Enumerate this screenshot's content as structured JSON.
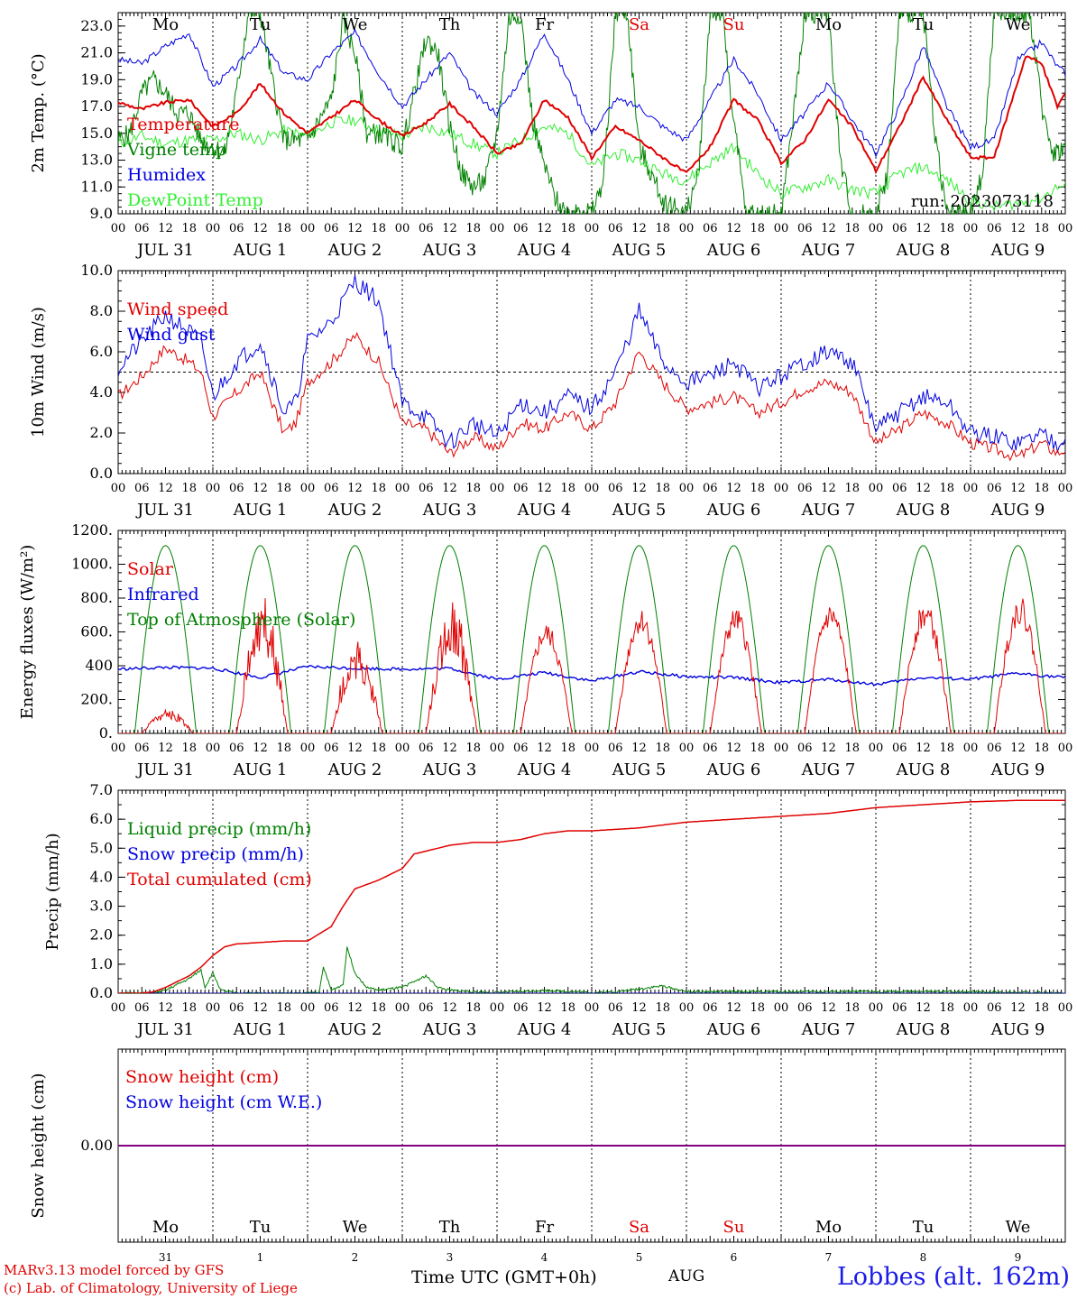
{
  "run_label": "run: 2023073118",
  "colors": {
    "red": "#e00000",
    "green": "#008000",
    "blue": "#0000e0",
    "lightgreen": "#33ee33",
    "purple": "#800080",
    "black": "#000000"
  },
  "x_hour_ticks": [
    "00",
    "06",
    "12",
    "18"
  ],
  "x_end_tick": "00",
  "date_labels": [
    "JUL 31",
    "AUG  1",
    "AUG  2",
    "AUG  3",
    "AUG  4",
    "AUG  5",
    "AUG  6",
    "AUG  7",
    "AUG  8",
    "AUG  9"
  ],
  "weekdays": [
    {
      "label": "Mo",
      "color": "black"
    },
    {
      "label": "Tu",
      "color": "black"
    },
    {
      "label": "We",
      "color": "black"
    },
    {
      "label": "Th",
      "color": "black"
    },
    {
      "label": "Fr",
      "color": "black"
    },
    {
      "label": "Sa",
      "color": "red"
    },
    {
      "label": "Su",
      "color": "red"
    },
    {
      "label": "Mo",
      "color": "black"
    },
    {
      "label": "Tu",
      "color": "black"
    },
    {
      "label": "We",
      "color": "black"
    }
  ],
  "bottom_day_numbers": [
    "31",
    "1",
    "2",
    "3",
    "4",
    "5",
    "6",
    "7",
    "8",
    "9"
  ],
  "footer": {
    "credit_line1": "MARv3.13 model forced by GFS",
    "credit_line2": "(c) Lab. of Climatology, University of Liege",
    "x_title": "Time UTC (GMT+0h)",
    "month": "AUG",
    "station": "Lobbes (alt. 162m)"
  },
  "chart_data": [
    {
      "type": "line",
      "ylabel": "2m Temp. (°C)",
      "ylim": [
        9.0,
        24.0
      ],
      "yticks": [
        "9.0",
        "11.0",
        "13.0",
        "15.0",
        "17.0",
        "19.0",
        "21.0",
        "23.0"
      ],
      "x_unit": "hours since 2023-07-31 00 UTC",
      "series": [
        {
          "name": "Temperature",
          "color": "red",
          "x": [
            0,
            6,
            12,
            18,
            24,
            30,
            36,
            42,
            48,
            54,
            60,
            66,
            72,
            78,
            84,
            90,
            96,
            102,
            108,
            114,
            120,
            126,
            132,
            138,
            144,
            150,
            156,
            162,
            168,
            174,
            180,
            186,
            192,
            198,
            204,
            210,
            216,
            222,
            230,
            234,
            238,
            240
          ],
          "y": [
            17.3,
            16.8,
            17.3,
            17.5,
            15.5,
            16.5,
            18.7,
            16.5,
            15.0,
            16.2,
            17.5,
            16.0,
            14.8,
            15.8,
            17.2,
            15.5,
            13.5,
            14.2,
            17.5,
            16.2,
            13.2,
            15.5,
            14.5,
            13.2,
            12.0,
            14.0,
            17.5,
            16.0,
            12.8,
            14.5,
            17.5,
            15.5,
            12.2,
            15.5,
            19.2,
            16.0,
            13.2,
            13.2,
            20.8,
            20.2,
            17.0,
            18.0
          ]
        },
        {
          "name": "Vigne temp",
          "color": "green",
          "x": [
            0,
            3,
            6,
            9,
            12,
            15,
            18,
            21,
            24,
            27,
            30,
            33,
            36,
            39,
            42,
            45,
            48,
            51,
            54,
            57,
            60,
            63,
            66,
            69,
            72,
            75,
            78,
            81,
            84,
            87,
            90,
            93,
            96,
            99,
            102,
            105,
            108,
            111,
            114,
            117,
            120,
            123,
            126,
            129,
            132,
            135,
            138,
            141,
            144,
            147,
            150,
            153,
            156,
            159,
            162,
            165,
            168,
            171,
            174,
            177,
            180,
            183,
            186,
            189,
            192,
            195,
            198,
            201,
            204,
            207,
            210,
            213,
            216,
            219,
            222,
            225,
            228,
            231,
            234,
            237,
            240
          ],
          "y": [
            14.5,
            15.0,
            18.0,
            19.0,
            18.0,
            16.5,
            16.5,
            14.5,
            14.0,
            13.5,
            18.0,
            24.0,
            24.0,
            19.0,
            14.5,
            14.5,
            14.5,
            16.0,
            17.5,
            23.5,
            21.0,
            15.0,
            15.0,
            14.5,
            14.0,
            18.0,
            22.0,
            21.0,
            15.5,
            12.0,
            11.0,
            11.5,
            15.0,
            23.5,
            24.0,
            16.0,
            12.5,
            10.0,
            9.0,
            9.5,
            9.0,
            11.5,
            24.0,
            24.0,
            14.0,
            12.0,
            10.0,
            9.5,
            9.0,
            12.0,
            24.0,
            24.0,
            16.0,
            9.0,
            9.0,
            9.0,
            9.0,
            16.0,
            24.0,
            24.0,
            24.0,
            13.0,
            9.0,
            9.0,
            9.0,
            12.0,
            24.0,
            24.0,
            24.0,
            15.0,
            9.0,
            9.0,
            9.0,
            12.0,
            24.0,
            24.0,
            24.0,
            24.0,
            17.0,
            13.5,
            14.0
          ]
        },
        {
          "name": "Humidex",
          "color": "blue",
          "x": [
            0,
            6,
            12,
            18,
            24,
            30,
            36,
            42,
            48,
            54,
            60,
            66,
            72,
            78,
            84,
            90,
            96,
            102,
            108,
            114,
            120,
            126,
            132,
            138,
            144,
            150,
            156,
            162,
            168,
            174,
            180,
            186,
            192,
            198,
            204,
            210,
            216,
            222,
            228,
            234,
            238,
            240
          ],
          "y": [
            20.5,
            20.2,
            21.5,
            22.5,
            18.5,
            20.0,
            22.0,
            19.5,
            19.0,
            21.0,
            22.5,
            19.5,
            17.0,
            19.0,
            21.0,
            18.0,
            16.5,
            19.0,
            22.5,
            19.0,
            15.0,
            17.5,
            17.0,
            15.5,
            14.5,
            17.5,
            20.5,
            18.0,
            14.5,
            16.5,
            18.8,
            16.0,
            13.5,
            17.0,
            21.5,
            17.0,
            14.0,
            14.5,
            20.5,
            21.8,
            20.0,
            19.5
          ]
        },
        {
          "name": "DewPoint Temp",
          "color": "lightgreen",
          "x": [
            0,
            6,
            12,
            18,
            24,
            30,
            36,
            42,
            48,
            54,
            60,
            66,
            72,
            78,
            84,
            90,
            96,
            102,
            108,
            114,
            120,
            126,
            132,
            138,
            144,
            150,
            156,
            162,
            168,
            174,
            180,
            186,
            192,
            198,
            204,
            210,
            216,
            222,
            228,
            234,
            238,
            240
          ],
          "y": [
            14.2,
            14.8,
            14.2,
            14.5,
            14.5,
            15.0,
            14.5,
            15.2,
            14.8,
            15.8,
            16.0,
            15.2,
            14.8,
            15.5,
            15.0,
            14.2,
            13.5,
            14.5,
            15.5,
            15.0,
            12.5,
            13.5,
            13.0,
            12.0,
            11.5,
            12.8,
            14.0,
            12.0,
            10.5,
            11.0,
            11.5,
            10.8,
            10.5,
            12.0,
            12.5,
            11.5,
            10.0,
            9.5,
            9.8,
            10.2,
            11.0,
            11.0
          ]
        }
      ]
    },
    {
      "type": "line",
      "ylabel": "10m Wind (m/s)",
      "ylim": [
        0.0,
        10.0
      ],
      "yticks": [
        "0.0",
        "2.0",
        "4.0",
        "6.0",
        "8.0",
        "10.0"
      ],
      "reference_line": 5.0,
      "series": [
        {
          "name": "Wind speed",
          "color": "red",
          "x": [
            0,
            6,
            12,
            18,
            21,
            24,
            30,
            36,
            42,
            45,
            48,
            54,
            60,
            66,
            72,
            78,
            84,
            90,
            96,
            102,
            108,
            114,
            120,
            126,
            132,
            138,
            144,
            150,
            156,
            162,
            168,
            174,
            180,
            186,
            192,
            198,
            204,
            210,
            216,
            222,
            228,
            234,
            238,
            240
          ],
          "y": [
            3.8,
            4.8,
            6.2,
            5.5,
            5.0,
            2.8,
            4.0,
            5.0,
            2.0,
            2.5,
            4.5,
            5.5,
            6.8,
            5.5,
            2.5,
            2.2,
            1.0,
            1.8,
            1.2,
            2.5,
            2.2,
            3.0,
            2.2,
            3.5,
            6.0,
            4.5,
            3.2,
            3.5,
            3.8,
            3.0,
            3.5,
            4.2,
            4.5,
            4.0,
            1.5,
            2.2,
            3.0,
            2.5,
            1.5,
            1.2,
            0.8,
            1.5,
            1.0,
            1.2
          ]
        },
        {
          "name": "Wind gust",
          "color": "blue",
          "x": [
            0,
            6,
            12,
            18,
            21,
            24,
            30,
            36,
            42,
            45,
            48,
            54,
            60,
            66,
            72,
            78,
            84,
            90,
            96,
            102,
            108,
            114,
            120,
            126,
            132,
            138,
            144,
            150,
            156,
            162,
            168,
            174,
            180,
            186,
            192,
            198,
            204,
            210,
            216,
            222,
            228,
            234,
            238,
            240
          ],
          "y": [
            5.2,
            6.5,
            7.8,
            7.0,
            6.5,
            3.8,
            5.5,
            6.5,
            3.0,
            3.5,
            6.5,
            7.5,
            9.5,
            8.5,
            3.5,
            2.8,
            1.5,
            2.5,
            1.8,
            3.5,
            3.0,
            3.8,
            3.2,
            5.0,
            8.0,
            5.5,
            4.5,
            4.8,
            5.5,
            4.2,
            4.8,
            5.5,
            6.0,
            5.5,
            2.2,
            3.0,
            3.8,
            3.5,
            2.0,
            1.8,
            1.5,
            2.0,
            1.5,
            2.0
          ]
        }
      ]
    },
    {
      "type": "line",
      "ylabel": "Energy fluxes (W/m²)",
      "ylim": [
        0,
        1200
      ],
      "yticks": [
        "0.",
        "200.",
        "400",
        "600.",
        "800.",
        "1000.",
        "1200."
      ],
      "series": [
        {
          "name": "Solar",
          "color": "red",
          "daily_peaks": [
            150,
            820,
            550,
            800,
            650,
            740,
            740,
            770,
            780,
            810
          ]
        },
        {
          "name": "Infrared",
          "color": "blue",
          "x": [
            0,
            12,
            24,
            36,
            48,
            60,
            72,
            84,
            96,
            108,
            120,
            132,
            144,
            156,
            168,
            180,
            192,
            204,
            216,
            228,
            240
          ],
          "y": [
            380,
            390,
            385,
            330,
            395,
            385,
            380,
            385,
            320,
            360,
            310,
            365,
            335,
            330,
            300,
            320,
            290,
            330,
            320,
            355,
            330
          ]
        },
        {
          "name": "Top of Atmosphere (Solar)",
          "color": "green",
          "daily_peak": 1110,
          "sunrise_h": 4.2,
          "sunset_h": 19.8
        }
      ]
    },
    {
      "type": "line",
      "ylabel": "Precip (mm/h)",
      "ylim": [
        0.0,
        7.0
      ],
      "yticks": [
        "0.0",
        "1.0",
        "2.0",
        "3.0",
        "4.0",
        "5.0",
        "6.0",
        "7.0"
      ],
      "series": [
        {
          "name": "Liquid precip (mm/h)",
          "color": "green",
          "x": [
            0,
            6,
            9,
            12,
            15,
            18,
            21,
            22,
            24,
            26,
            28,
            30,
            48,
            51,
            52,
            54,
            57,
            58,
            60,
            63,
            66,
            69,
            72,
            75,
            78,
            81,
            84,
            90,
            96,
            108,
            120,
            126,
            132,
            138,
            144,
            168,
            216,
            240
          ],
          "y": [
            0,
            0,
            0,
            0.1,
            0.3,
            0.5,
            0.8,
            0.2,
            0.7,
            0.1,
            0.05,
            0,
            0,
            0.05,
            0.9,
            0.1,
            0.3,
            1.6,
            0.7,
            0.2,
            0.1,
            0.15,
            0.2,
            0.4,
            0.6,
            0.2,
            0.1,
            0.05,
            0.02,
            0.1,
            0.02,
            0.05,
            0.15,
            0.25,
            0.05,
            0.05,
            0.05,
            0
          ]
        },
        {
          "name": "Snow precip (mm/h)",
          "color": "blue",
          "x": [
            0,
            240
          ],
          "y": [
            0,
            0
          ]
        },
        {
          "name": "Total cumulated (cm)",
          "color": "red",
          "x": [
            0,
            6,
            9,
            12,
            15,
            18,
            21,
            24,
            27,
            30,
            36,
            42,
            48,
            54,
            57,
            60,
            66,
            72,
            75,
            78,
            84,
            90,
            96,
            102,
            108,
            114,
            120,
            126,
            132,
            138,
            144,
            156,
            168,
            180,
            192,
            204,
            216,
            228,
            240
          ],
          "y": [
            0,
            0,
            0.05,
            0.2,
            0.4,
            0.6,
            0.9,
            1.3,
            1.6,
            1.7,
            1.75,
            1.8,
            1.8,
            2.3,
            3.0,
            3.6,
            3.9,
            4.3,
            4.8,
            4.9,
            5.1,
            5.2,
            5.2,
            5.3,
            5.5,
            5.6,
            5.6,
            5.65,
            5.7,
            5.8,
            5.9,
            6.0,
            6.1,
            6.2,
            6.4,
            6.5,
            6.6,
            6.65,
            6.65
          ]
        }
      ]
    },
    {
      "type": "line",
      "ylabel": "Snow height (cm)",
      "yticks": [
        "0.00"
      ],
      "series": [
        {
          "name": "Snow height (cm)",
          "color": "red",
          "x": [
            0,
            240
          ],
          "y": [
            0,
            0
          ]
        },
        {
          "name": "Snow height (cm W.E.)",
          "color": "blue",
          "x": [
            0,
            240
          ],
          "y": [
            0,
            0
          ]
        }
      ]
    }
  ]
}
